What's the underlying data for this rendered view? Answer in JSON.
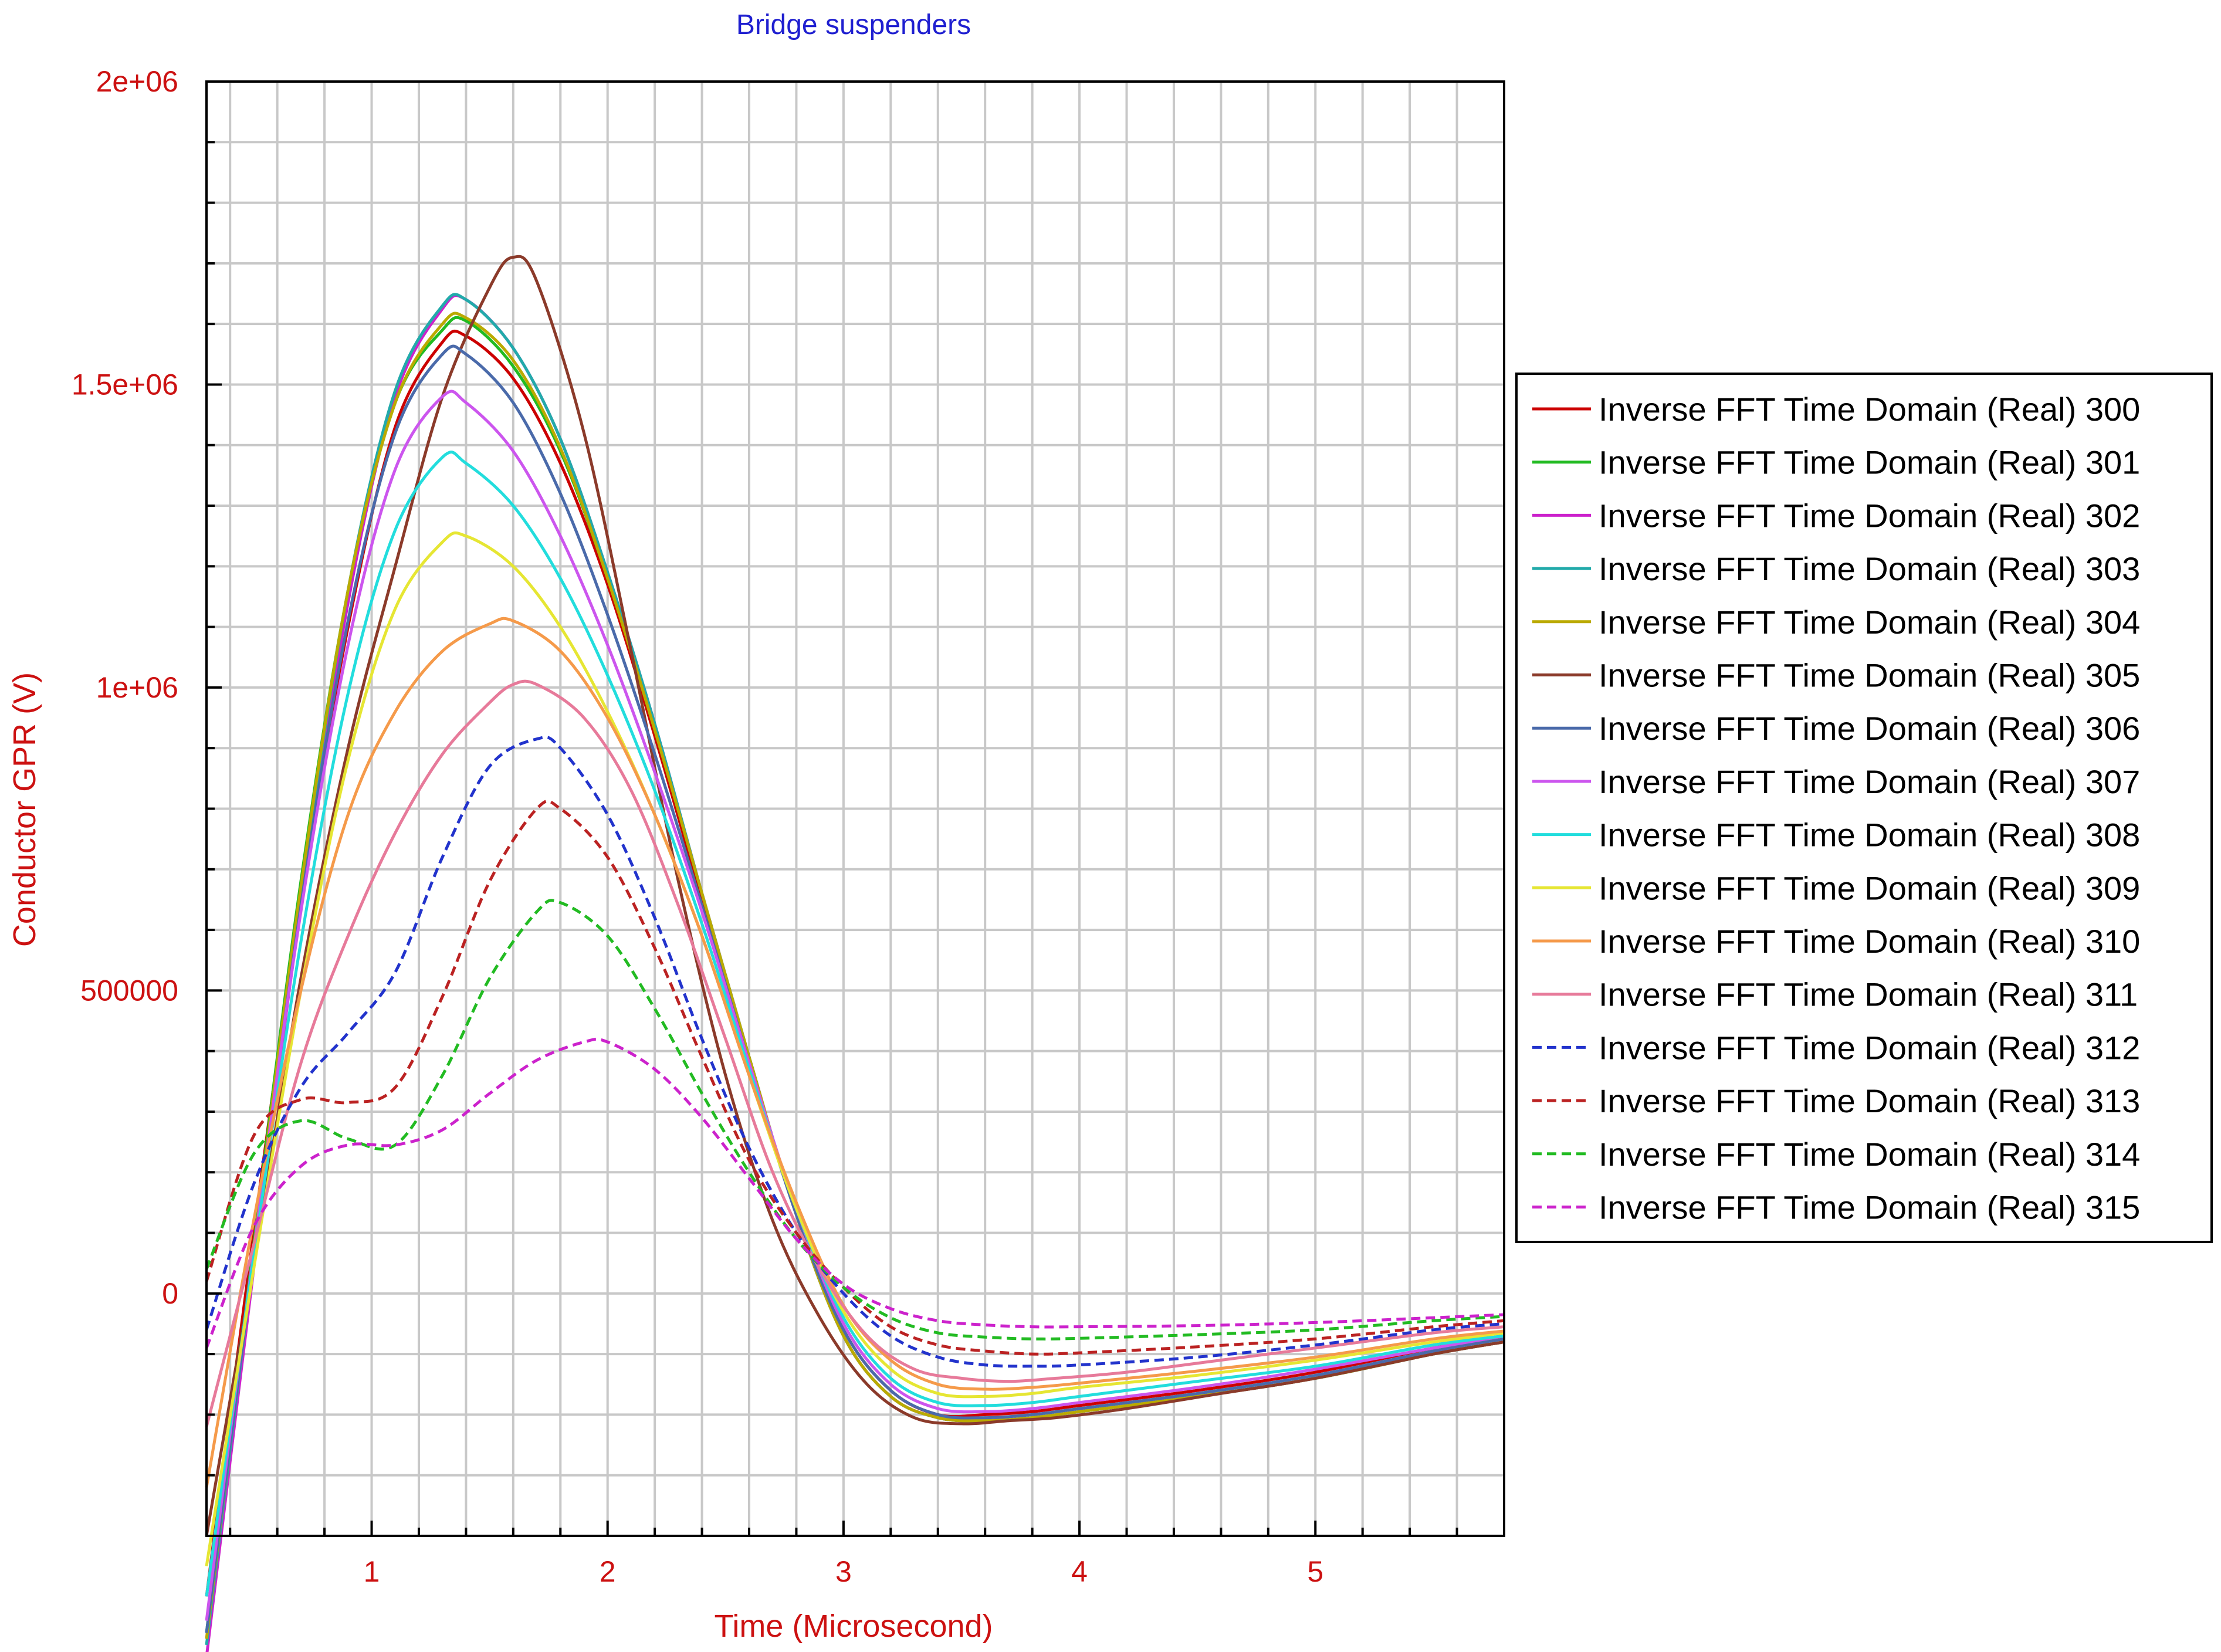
{
  "chart_data": {
    "type": "line",
    "title": "Bridge suspenders",
    "xlabel": "Time (Microsecond)",
    "ylabel": "Conductor GPR (V)",
    "xlim": [
      0.3,
      5.8
    ],
    "ylim": [
      -400000,
      2000000
    ],
    "x_ticks": [
      1,
      2,
      3,
      4,
      5
    ],
    "x_tick_labels": [
      "1",
      "2",
      "3",
      "4",
      "5"
    ],
    "y_ticks": [
      0,
      500000,
      1000000,
      1500000,
      2000000
    ],
    "y_tick_labels": [
      "0",
      "500000",
      "1e+06",
      "1.5e+06",
      "2e+06"
    ],
    "grid": true,
    "legend_position": "right",
    "series": [
      {
        "name": "Inverse FFT Time Domain (Real) 300",
        "color": "#cc0000",
        "dash": false,
        "x": [
          0.3,
          0.5,
          0.7,
          0.9,
          1.1,
          1.3,
          1.4,
          1.6,
          1.8,
          2.0,
          2.2,
          2.4,
          2.6,
          2.8,
          3.0,
          3.2,
          3.4,
          3.6,
          3.8,
          4.0,
          4.5,
          5.0,
          5.5,
          5.8
        ],
        "y": [
          -500000,
          100000,
          650000,
          1100000,
          1430000,
          1570000,
          1580000,
          1510000,
          1370000,
          1170000,
          920000,
          650000,
          390000,
          130000,
          -60000,
          -160000,
          -200000,
          -200000,
          -195000,
          -185000,
          -160000,
          -130000,
          -90000,
          -70000
        ]
      },
      {
        "name": "Inverse FFT Time Domain (Real) 301",
        "color": "#22bb22",
        "dash": false,
        "x": [
          0.3,
          0.5,
          0.7,
          0.9,
          1.1,
          1.3,
          1.4,
          1.6,
          1.8,
          2.0,
          2.2,
          2.4,
          2.6,
          2.8,
          3.0,
          3.2,
          3.4,
          3.6,
          3.8,
          4.0,
          4.5,
          5.0,
          5.5,
          5.8
        ],
        "y": [
          -560000,
          80000,
          680000,
          1160000,
          1470000,
          1590000,
          1605000,
          1530000,
          1390000,
          1180000,
          930000,
          660000,
          390000,
          130000,
          -70000,
          -170000,
          -205000,
          -210000,
          -205000,
          -195000,
          -170000,
          -140000,
          -100000,
          -80000
        ]
      },
      {
        "name": "Inverse FFT Time Domain (Real) 302",
        "color": "#cc22cc",
        "dash": false,
        "x": [
          0.3,
          0.5,
          0.7,
          0.9,
          1.1,
          1.3,
          1.4,
          1.6,
          1.8,
          2.0,
          2.2,
          2.4,
          2.6,
          2.8,
          3.0,
          3.2,
          3.4,
          3.6,
          3.8,
          4.0,
          4.5,
          5.0,
          5.5,
          5.8
        ],
        "y": [
          -600000,
          40000,
          640000,
          1140000,
          1480000,
          1625000,
          1640000,
          1560000,
          1410000,
          1190000,
          940000,
          660000,
          390000,
          130000,
          -70000,
          -170000,
          -205000,
          -210000,
          -205000,
          -195000,
          -170000,
          -140000,
          -100000,
          -80000
        ]
      },
      {
        "name": "Inverse FFT Time Domain (Real) 303",
        "color": "#22aaaa",
        "dash": false,
        "x": [
          0.3,
          0.5,
          0.7,
          0.9,
          1.1,
          1.3,
          1.4,
          1.6,
          1.8,
          2.0,
          2.2,
          2.4,
          2.6,
          2.8,
          3.0,
          3.2,
          3.4,
          3.6,
          3.8,
          4.0,
          4.5,
          5.0,
          5.5,
          5.8
        ],
        "y": [
          -580000,
          60000,
          660000,
          1160000,
          1490000,
          1630000,
          1640000,
          1560000,
          1410000,
          1190000,
          940000,
          660000,
          390000,
          130000,
          -70000,
          -170000,
          -205000,
          -210000,
          -205000,
          -195000,
          -170000,
          -140000,
          -100000,
          -80000
        ]
      },
      {
        "name": "Inverse FFT Time Domain (Real) 304",
        "color": "#bbaa00",
        "dash": false,
        "x": [
          0.3,
          0.5,
          0.7,
          0.9,
          1.1,
          1.3,
          1.4,
          1.6,
          1.8,
          2.0,
          2.2,
          2.4,
          2.6,
          2.8,
          3.0,
          3.2,
          3.4,
          3.6,
          3.8,
          4.0,
          4.5,
          5.0,
          5.5,
          5.8
        ],
        "y": [
          -570000,
          70000,
          670000,
          1160000,
          1470000,
          1600000,
          1610000,
          1540000,
          1395000,
          1180000,
          930000,
          660000,
          390000,
          130000,
          -70000,
          -170000,
          -205000,
          -210000,
          -205000,
          -195000,
          -170000,
          -140000,
          -100000,
          -80000
        ]
      },
      {
        "name": "Inverse FFT Time Domain (Real) 305",
        "color": "#8b3a2a",
        "dash": false,
        "x": [
          0.3,
          0.5,
          0.7,
          0.9,
          1.1,
          1.3,
          1.5,
          1.6,
          1.7,
          1.9,
          2.1,
          2.3,
          2.5,
          2.7,
          2.9,
          3.1,
          3.3,
          3.5,
          3.7,
          3.9,
          4.2,
          4.6,
          5.0,
          5.5,
          5.8
        ],
        "y": [
          -400000,
          50000,
          520000,
          900000,
          1200000,
          1480000,
          1660000,
          1710000,
          1670000,
          1420000,
          1060000,
          680000,
          360000,
          120000,
          -40000,
          -150000,
          -205000,
          -215000,
          -210000,
          -205000,
          -190000,
          -165000,
          -140000,
          -100000,
          -80000
        ]
      },
      {
        "name": "Inverse FFT Time Domain (Real) 306",
        "color": "#4a6aaa",
        "dash": false,
        "x": [
          0.3,
          0.5,
          0.7,
          0.9,
          1.1,
          1.3,
          1.4,
          1.6,
          1.8,
          2.0,
          2.2,
          2.4,
          2.6,
          2.8,
          3.0,
          3.2,
          3.4,
          3.6,
          3.8,
          4.0,
          4.5,
          5.0,
          5.5,
          5.8
        ],
        "y": [
          -560000,
          60000,
          640000,
          1110000,
          1420000,
          1550000,
          1550000,
          1470000,
          1320000,
          1120000,
          890000,
          640000,
          380000,
          130000,
          -60000,
          -160000,
          -200000,
          -205000,
          -200000,
          -190000,
          -165000,
          -135000,
          -95000,
          -75000
        ]
      },
      {
        "name": "Inverse FFT Time Domain (Real) 307",
        "color": "#cc55ee",
        "dash": false,
        "x": [
          0.3,
          0.5,
          0.7,
          0.9,
          1.1,
          1.3,
          1.4,
          1.6,
          1.8,
          2.0,
          2.2,
          2.4,
          2.6,
          2.8,
          3.0,
          3.2,
          3.4,
          3.6,
          3.8,
          4.0,
          4.5,
          5.0,
          5.5,
          5.8
        ],
        "y": [
          -540000,
          70000,
          630000,
          1070000,
          1360000,
          1480000,
          1470000,
          1390000,
          1250000,
          1070000,
          860000,
          630000,
          380000,
          140000,
          -50000,
          -150000,
          -190000,
          -195000,
          -190000,
          -180000,
          -155000,
          -125000,
          -90000,
          -70000
        ]
      },
      {
        "name": "Inverse FFT Time Domain (Real) 308",
        "color": "#22dddd",
        "dash": false,
        "x": [
          0.3,
          0.5,
          0.7,
          0.9,
          1.1,
          1.3,
          1.4,
          1.6,
          1.8,
          2.0,
          2.2,
          2.4,
          2.6,
          2.8,
          3.0,
          3.2,
          3.4,
          3.6,
          3.8,
          4.0,
          4.5,
          5.0,
          5.5,
          5.8
        ],
        "y": [
          -500000,
          60000,
          580000,
          990000,
          1260000,
          1380000,
          1370000,
          1300000,
          1180000,
          1020000,
          830000,
          610000,
          370000,
          140000,
          -40000,
          -140000,
          -180000,
          -185000,
          -180000,
          -170000,
          -145000,
          -120000,
          -85000,
          -70000
        ]
      },
      {
        "name": "Inverse FFT Time Domain (Real) 309",
        "color": "#e6e633",
        "dash": false,
        "x": [
          0.3,
          0.5,
          0.7,
          0.9,
          1.1,
          1.3,
          1.4,
          1.6,
          1.8,
          2.0,
          2.2,
          2.4,
          2.6,
          2.8,
          3.0,
          3.2,
          3.4,
          3.6,
          3.8,
          4.0,
          4.5,
          5.0,
          5.5,
          5.8
        ],
        "y": [
          -450000,
          40000,
          500000,
          880000,
          1130000,
          1240000,
          1250000,
          1200000,
          1100000,
          960000,
          790000,
          590000,
          360000,
          140000,
          -30000,
          -125000,
          -165000,
          -170000,
          -165000,
          -155000,
          -135000,
          -110000,
          -80000,
          -65000
        ]
      },
      {
        "name": "Inverse FFT Time Domain (Real) 310",
        "color": "#f59a4a",
        "dash": false,
        "x": [
          0.3,
          0.5,
          0.7,
          0.9,
          1.1,
          1.3,
          1.5,
          1.6,
          1.8,
          2.0,
          2.2,
          2.4,
          2.6,
          2.8,
          3.0,
          3.2,
          3.4,
          3.6,
          3.8,
          4.0,
          4.5,
          5.0,
          5.5,
          5.8
        ],
        "y": [
          -320000,
          120000,
          500000,
          790000,
          960000,
          1060000,
          1105000,
          1110000,
          1060000,
          950000,
          790000,
          590000,
          360000,
          150000,
          -20000,
          -110000,
          -150000,
          -158000,
          -155000,
          -148000,
          -128000,
          -105000,
          -75000,
          -62000
        ]
      },
      {
        "name": "Inverse FFT Time Domain (Real) 311",
        "color": "#e77a9a",
        "dash": false,
        "x": [
          0.3,
          0.5,
          0.7,
          0.9,
          1.1,
          1.3,
          1.5,
          1.6,
          1.7,
          1.9,
          2.1,
          2.3,
          2.5,
          2.7,
          2.9,
          3.1,
          3.3,
          3.5,
          3.7,
          3.9,
          4.2,
          4.6,
          5.0,
          5.5,
          5.8
        ],
        "y": [
          -220000,
          80000,
          380000,
          590000,
          760000,
          890000,
          975000,
          1005000,
          1005000,
          950000,
          830000,
          640000,
          420000,
          200000,
          40000,
          -70000,
          -125000,
          -140000,
          -145000,
          -140000,
          -130000,
          -110000,
          -90000,
          -65000,
          -55000
        ]
      },
      {
        "name": "Inverse FFT Time Domain (Real) 312",
        "color": "#2233cc",
        "dash": true,
        "x": [
          0.3,
          0.5,
          0.7,
          0.9,
          1.1,
          1.3,
          1.5,
          1.7,
          1.8,
          2.0,
          2.2,
          2.4,
          2.6,
          2.8,
          3.0,
          3.2,
          3.4,
          3.6,
          3.8,
          4.0,
          4.5,
          5.0,
          5.5,
          5.8
        ],
        "y": [
          -60000,
          180000,
          340000,
          430000,
          530000,
          720000,
          870000,
          915000,
          900000,
          790000,
          620000,
          420000,
          240000,
          100000,
          0,
          -70000,
          -105000,
          -118000,
          -120000,
          -118000,
          -105000,
          -85000,
          -60000,
          -50000
        ]
      },
      {
        "name": "Inverse FFT Time Domain (Real) 313",
        "color": "#bb2222",
        "dash": true,
        "x": [
          0.3,
          0.5,
          0.7,
          0.9,
          1.1,
          1.3,
          1.5,
          1.7,
          1.8,
          2.0,
          2.2,
          2.4,
          2.6,
          2.8,
          3.0,
          3.2,
          3.4,
          3.6,
          3.8,
          4.0,
          4.5,
          5.0,
          5.5,
          5.8
        ],
        "y": [
          20000,
          260000,
          320000,
          315000,
          340000,
          490000,
          680000,
          800000,
          800000,
          720000,
          570000,
          390000,
          220000,
          100000,
          10000,
          -55000,
          -85000,
          -95000,
          -100000,
          -98000,
          -88000,
          -75000,
          -55000,
          -45000
        ]
      },
      {
        "name": "Inverse FFT Time Domain (Real) 314",
        "color": "#22bb22",
        "dash": true,
        "x": [
          0.3,
          0.5,
          0.7,
          0.9,
          1.1,
          1.3,
          1.5,
          1.7,
          1.8,
          2.0,
          2.2,
          2.4,
          2.6,
          2.8,
          3.0,
          3.2,
          3.4,
          3.6,
          3.8,
          4.0,
          4.5,
          5.0,
          5.5,
          5.8
        ],
        "y": [
          40000,
          230000,
          285000,
          255000,
          245000,
          360000,
          520000,
          630000,
          645000,
          590000,
          470000,
          330000,
          200000,
          90000,
          10000,
          -40000,
          -65000,
          -72000,
          -75000,
          -74000,
          -68000,
          -60000,
          -45000,
          -38000
        ]
      },
      {
        "name": "Inverse FFT Time Domain (Real) 315",
        "color": "#cc22cc",
        "dash": true,
        "x": [
          0.3,
          0.5,
          0.7,
          0.9,
          1.1,
          1.3,
          1.5,
          1.7,
          1.9,
          2.0,
          2.2,
          2.4,
          2.6,
          2.8,
          3.0,
          3.2,
          3.4,
          3.6,
          3.8,
          4.0,
          4.5,
          5.0,
          5.5,
          5.8
        ],
        "y": [
          -90000,
          110000,
          210000,
          245000,
          245000,
          270000,
          330000,
          385000,
          415000,
          415000,
          370000,
          290000,
          190000,
          90000,
          15000,
          -25000,
          -45000,
          -52000,
          -55000,
          -55000,
          -53000,
          -48000,
          -40000,
          -35000
        ]
      }
    ]
  }
}
